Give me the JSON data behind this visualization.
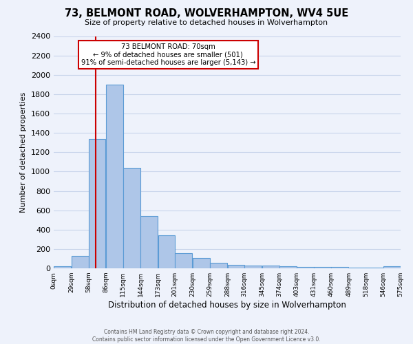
{
  "title": "73, BELMONT ROAD, WOLVERHAMPTON, WV4 5UE",
  "subtitle": "Size of property relative to detached houses in Wolverhampton",
  "xlabel": "Distribution of detached houses by size in Wolverhampton",
  "ylabel": "Number of detached properties",
  "footer_line1": "Contains HM Land Registry data © Crown copyright and database right 2024.",
  "footer_line2": "Contains public sector information licensed under the Open Government Licence v3.0.",
  "bar_color": "#aec6e8",
  "bar_edge_color": "#5b9bd5",
  "background_color": "#eef2fb",
  "annotation_box_color": "#ffffff",
  "annotation_border_color": "#cc0000",
  "vline_color": "#cc0000",
  "annotation_text_line1": "73 BELMONT ROAD: 70sqm",
  "annotation_text_line2": "← 9% of detached houses are smaller (501)",
  "annotation_text_line3": "91% of semi-detached houses are larger (5,143) →",
  "property_size": 70,
  "bin_edges": [
    0,
    29,
    58,
    86,
    115,
    144,
    173,
    201,
    230,
    259,
    288,
    316,
    345,
    374,
    403,
    431,
    460,
    489,
    518,
    546,
    575
  ],
  "bin_labels": [
    "0sqm",
    "29sqm",
    "58sqm",
    "86sqm",
    "115sqm",
    "144sqm",
    "173sqm",
    "201sqm",
    "230sqm",
    "259sqm",
    "288sqm",
    "316sqm",
    "345sqm",
    "374sqm",
    "403sqm",
    "431sqm",
    "460sqm",
    "489sqm",
    "518sqm",
    "546sqm",
    "575sqm"
  ],
  "bar_heights": [
    20,
    130,
    1340,
    1900,
    1040,
    540,
    340,
    160,
    110,
    55,
    35,
    28,
    25,
    18,
    15,
    12,
    15,
    10,
    5,
    20
  ],
  "ylim": [
    0,
    2400
  ],
  "yticks": [
    0,
    200,
    400,
    600,
    800,
    1000,
    1200,
    1400,
    1600,
    1800,
    2000,
    2200,
    2400
  ],
  "grid_color": "#c8d4ea"
}
